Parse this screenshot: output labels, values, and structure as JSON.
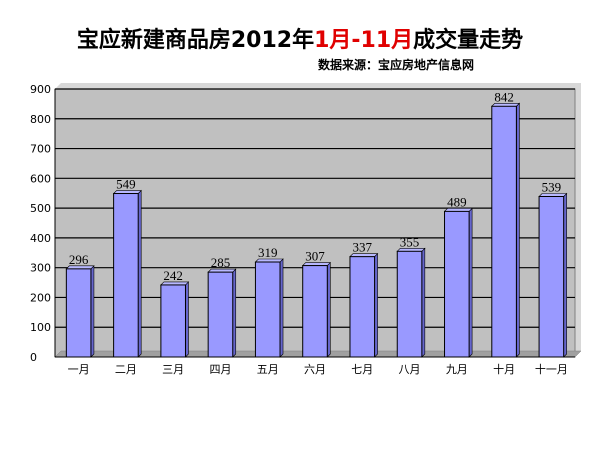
{
  "chart_data": {
    "type": "bar",
    "title_parts": [
      {
        "text": "宝应新建商品房2012年",
        "highlight": false
      },
      {
        "text": "1月-11月",
        "highlight": true
      },
      {
        "text": "成交量走势",
        "highlight": false
      }
    ],
    "subtitle": "数据来源：宝应房地产信息网",
    "categories": [
      "一月",
      "二月",
      "三月",
      "四月",
      "五月",
      "六月",
      "七月",
      "八月",
      "九月",
      "十月",
      "十一月"
    ],
    "values": [
      296,
      549,
      242,
      285,
      319,
      307,
      337,
      355,
      489,
      842,
      539
    ],
    "data_labels": [
      "296",
      "549",
      "242",
      "285",
      "319",
      "307",
      "337",
      "355",
      "489",
      "842",
      "539"
    ],
    "ylim": [
      0,
      900
    ],
    "yticks": [
      0,
      100,
      200,
      300,
      400,
      500,
      600,
      700,
      800,
      900
    ],
    "grid": true,
    "legend": "none",
    "xlabel": "",
    "ylabel": "",
    "colors": {
      "bar_fill": "#9999ff",
      "bar_stroke": "#000000",
      "plot_bg": "#c0c0c0",
      "grid": "#000000",
      "title_highlight": "#e00000"
    }
  }
}
